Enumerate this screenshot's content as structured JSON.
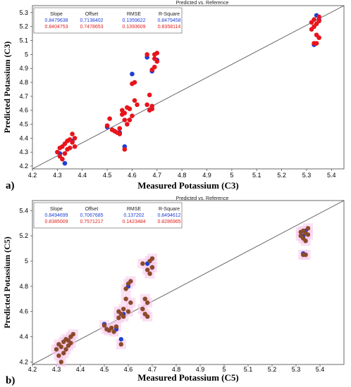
{
  "chart_data": [
    {
      "type": "scatter",
      "panel_label": "a)",
      "title": "Predicted vs. Reference",
      "xlabel": "Measured Potassium (C3)",
      "ylabel": "Predicted Potassium (C3)",
      "xlim": [
        4.2,
        5.45
      ],
      "ylim": [
        4.18,
        5.35
      ],
      "xticks": [
        "4.2",
        "4.3",
        "4.4",
        "4.5",
        "4.6",
        "4.7",
        "4.8",
        "4.9",
        "5",
        "5.1",
        "5.2",
        "5.3",
        "5.4"
      ],
      "yticks": [
        "4.2",
        "4.3",
        "4.4",
        "4.5",
        "4.6",
        "4.7",
        "4.8",
        "4.9",
        "5",
        "5.1",
        "5.2",
        "5.3"
      ],
      "grid": false,
      "reference_line": {
        "from": [
          4.2,
          4.18
        ],
        "to": [
          5.45,
          5.35
        ]
      },
      "stats_table": {
        "headers": [
          "Slope",
          "Offset",
          "RMSE",
          "R-Square"
        ],
        "rows": [
          {
            "color": "#1f3fd6",
            "values": [
              "0.8479638",
              "0.7138402",
              "0.1359622",
              "0.8479458"
            ]
          },
          {
            "color": "#e0201c",
            "values": [
              "0.8404753",
              "0.7478653",
              "0.1393609",
              "0.8358114"
            ]
          }
        ]
      },
      "series": [
        {
          "color": "#1f3fd6",
          "x": [
            4.31,
            4.33,
            4.36,
            4.5,
            4.55,
            4.57,
            4.6,
            4.66,
            4.68,
            4.7,
            5.33,
            5.34,
            5.35,
            5.33
          ],
          "y": [
            4.29,
            4.22,
            4.38,
            4.48,
            4.44,
            4.34,
            4.86,
            4.98,
            4.88,
            4.96,
            5.07,
            5.28,
            5.25,
            5.2
          ]
        },
        {
          "color": "#e8141c",
          "x": [
            4.3,
            4.31,
            4.31,
            4.32,
            4.32,
            4.33,
            4.33,
            4.34,
            4.34,
            4.35,
            4.35,
            4.36,
            4.36,
            4.37,
            4.37,
            4.5,
            4.51,
            4.52,
            4.53,
            4.54,
            4.55,
            4.55,
            4.56,
            4.56,
            4.57,
            4.57,
            4.57,
            4.58,
            4.58,
            4.59,
            4.59,
            4.6,
            4.6,
            4.61,
            4.61,
            4.62,
            4.66,
            4.66,
            4.67,
            4.67,
            4.68,
            4.68,
            4.69,
            4.69,
            4.7,
            4.7,
            4.68,
            4.69,
            5.32,
            5.32,
            5.33,
            5.33,
            5.34,
            5.34,
            5.35,
            5.35,
            5.33,
            5.34,
            5.35
          ],
          "y": [
            4.3,
            4.27,
            4.33,
            4.25,
            4.34,
            4.36,
            4.29,
            4.38,
            4.32,
            4.39,
            4.33,
            4.37,
            4.43,
            4.4,
            4.34,
            4.49,
            4.54,
            4.46,
            4.45,
            4.44,
            4.43,
            4.47,
            4.6,
            4.57,
            4.58,
            4.53,
            4.32,
            4.5,
            4.62,
            4.61,
            4.53,
            4.79,
            4.56,
            4.67,
            4.8,
            4.64,
            5.0,
            4.64,
            4.6,
            4.71,
            4.63,
            4.89,
            5.0,
            4.91,
            4.95,
            5.01,
            4.61,
            4.97,
            5.23,
            5.18,
            5.2,
            5.25,
            5.22,
            5.14,
            5.24,
            5.27,
            5.08,
            5.08,
            5.12
          ]
        }
      ]
    },
    {
      "type": "scatter",
      "panel_label": "b)",
      "title": "Predicted vs. Reference",
      "xlabel": "Measured Potassium (C5)",
      "ylabel": "Predicted Potassium (C5)",
      "xlim": [
        4.2,
        5.5
      ],
      "ylim": [
        4.18,
        5.48
      ],
      "xticks": [
        "4.2",
        "4.3",
        "4.4",
        "4.5",
        "4.6",
        "4.7",
        "4.8",
        "4.9",
        "5",
        "5.1",
        "5.2",
        "5.3",
        "5.4"
      ],
      "yticks": [
        "4.2",
        "4.4",
        "4.6",
        "4.8",
        "5",
        "5.2",
        "5.4"
      ],
      "grid": false,
      "reference_line": {
        "from": [
          4.2,
          4.18
        ],
        "to": [
          5.5,
          5.48
        ]
      },
      "stats_table": {
        "headers": [
          "Slope",
          "Offset",
          "RMSE",
          "R-Square"
        ],
        "rows": [
          {
            "color": "#1f3fd6",
            "values": [
              "0.8494699",
              "0.7067685",
              "0.137202",
              "0.8494612"
            ]
          },
          {
            "color": "#e0201c",
            "values": [
              "0.8385009",
              "0.7571217",
              "0.1423484",
              "0.8286965"
            ]
          }
        ]
      },
      "series": [
        {
          "color": "#1f3fd6",
          "x": [
            4.5,
            4.55,
            4.57,
            4.58,
            4.6,
            4.68,
            4.7,
            5.33,
            5.34,
            5.33
          ],
          "y": [
            4.5,
            4.46,
            4.38,
            4.58,
            4.8,
            4.98,
            4.95,
            5.06,
            5.24,
            5.2
          ]
        },
        {
          "color": "#8b4a2a",
          "x": [
            4.3,
            4.31,
            4.31,
            4.32,
            4.32,
            4.33,
            4.33,
            4.34,
            4.34,
            4.35,
            4.35,
            4.36,
            4.36,
            4.37,
            4.5,
            4.51,
            4.52,
            4.53,
            4.54,
            4.55,
            4.56,
            4.56,
            4.57,
            4.57,
            4.58,
            4.58,
            4.59,
            4.59,
            4.6,
            4.6,
            4.61,
            4.61,
            4.66,
            4.66,
            4.67,
            4.67,
            4.68,
            4.68,
            4.69,
            4.69,
            4.7,
            4.7,
            4.68,
            5.32,
            5.32,
            5.33,
            5.33,
            5.34,
            5.34,
            5.35,
            5.35,
            5.33,
            5.34
          ],
          "y": [
            4.3,
            4.25,
            4.34,
            4.2,
            4.32,
            4.36,
            4.27,
            4.38,
            4.3,
            4.37,
            4.33,
            4.4,
            4.35,
            4.42,
            4.49,
            4.46,
            4.45,
            4.47,
            4.44,
            4.48,
            4.55,
            4.6,
            4.58,
            4.34,
            4.62,
            4.56,
            4.7,
            4.78,
            4.6,
            4.82,
            4.67,
            4.84,
            4.98,
            4.62,
            4.58,
            4.7,
            4.67,
            4.93,
            5.0,
            4.9,
            5.02,
            4.95,
            4.56,
            5.23,
            5.2,
            5.18,
            5.24,
            5.22,
            5.16,
            5.21,
            5.26,
            5.05,
            5.05
          ]
        }
      ]
    }
  ]
}
